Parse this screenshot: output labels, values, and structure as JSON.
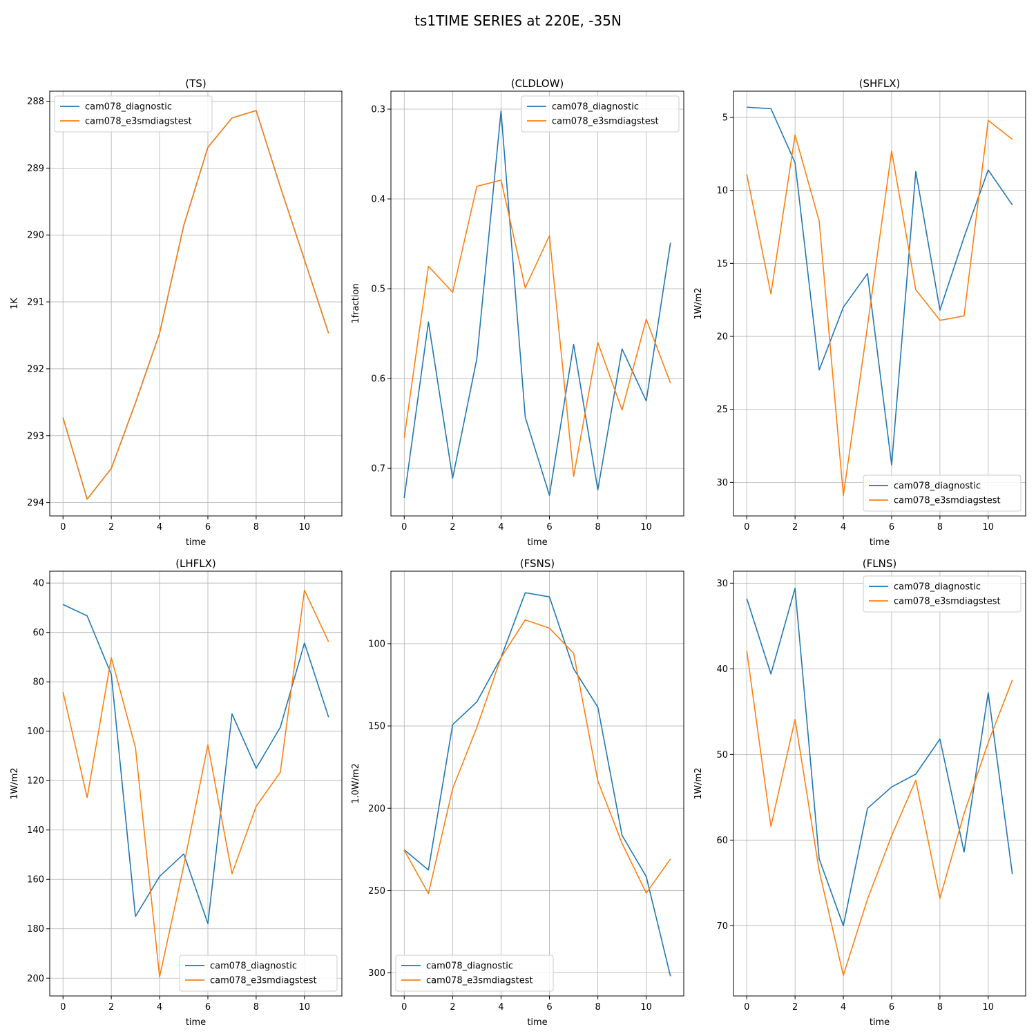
{
  "figure": {
    "suptitle": "ts1TIME SERIES at 220E, -35N"
  },
  "colors": {
    "diagnostic": "#1f77b4",
    "e3smdiagstest": "#ff7f0e"
  },
  "chart_data": [
    {
      "type": "line",
      "title": "(TS)",
      "xlabel": "time",
      "ylabel": "1K",
      "x": [
        0,
        1,
        2,
        3,
        4,
        5,
        6,
        7,
        8,
        9,
        10,
        11
      ],
      "xticks": [
        0,
        2,
        4,
        6,
        8,
        10
      ],
      "xlim": [
        -0.55,
        11.55
      ],
      "yticks": [
        288,
        289,
        290,
        291,
        292,
        293,
        294
      ],
      "ytick_labels": [
        "288",
        "289",
        "290",
        "291",
        "292",
        "293",
        "294"
      ],
      "ylim": [
        287.85,
        294.2
      ],
      "y_inverted": true,
      "grid": true,
      "legend": "upper-left",
      "series": [
        {
          "name": "cam078_diagnostic",
          "color": "#1f77b4",
          "values": [
            292.73,
            293.95,
            293.49,
            292.51,
            291.47,
            289.86,
            288.69,
            288.25,
            288.14,
            289.28,
            290.37,
            291.47
          ]
        },
        {
          "name": "cam078_e3smdiagstest",
          "color": "#ff7f0e",
          "values": [
            292.73,
            293.95,
            293.49,
            292.51,
            291.47,
            289.86,
            288.69,
            288.25,
            288.14,
            289.28,
            290.37,
            291.47
          ]
        }
      ]
    },
    {
      "type": "line",
      "title": "(CLDLOW)",
      "xlabel": "time",
      "ylabel": "1fraction",
      "x": [
        0,
        1,
        2,
        3,
        4,
        5,
        6,
        7,
        8,
        9,
        10,
        11
      ],
      "xticks": [
        0,
        2,
        4,
        6,
        8,
        10
      ],
      "xlim": [
        -0.55,
        11.55
      ],
      "yticks": [
        0.3,
        0.4,
        0.5,
        0.6,
        0.7
      ],
      "ytick_labels": [
        "0.3",
        "0.4",
        "0.5",
        "0.6",
        "0.7"
      ],
      "ylim": [
        0.28,
        0.753
      ],
      "y_inverted": true,
      "grid": true,
      "legend": "upper-right",
      "series": [
        {
          "name": "cam078_diagnostic",
          "color": "#1f77b4",
          "values": [
            0.733,
            0.537,
            0.711,
            0.578,
            0.302,
            0.643,
            0.73,
            0.562,
            0.724,
            0.567,
            0.625,
            0.449
          ]
        },
        {
          "name": "cam078_e3smdiagstest",
          "color": "#ff7f0e",
          "values": [
            0.666,
            0.475,
            0.504,
            0.386,
            0.379,
            0.499,
            0.441,
            0.709,
            0.56,
            0.635,
            0.534,
            0.605
          ]
        }
      ]
    },
    {
      "type": "line",
      "title": "(SHFLX)",
      "xlabel": "time",
      "ylabel": "1W/m2",
      "x": [
        0,
        1,
        2,
        3,
        4,
        5,
        6,
        7,
        8,
        9,
        10,
        11
      ],
      "xticks": [
        0,
        2,
        4,
        6,
        8,
        10
      ],
      "xlim": [
        -0.55,
        11.55
      ],
      "yticks": [
        5,
        10,
        15,
        20,
        25,
        30
      ],
      "ytick_labels": [
        "5",
        "10",
        "15",
        "20",
        "25",
        "30"
      ],
      "ylim": [
        3.2,
        32.3
      ],
      "y_inverted": true,
      "grid": true,
      "legend": "lower-right",
      "series": [
        {
          "name": "cam078_diagnostic",
          "color": "#1f77b4",
          "values": [
            4.3,
            4.4,
            8.1,
            22.3,
            18.0,
            15.7,
            28.8,
            8.7,
            18.2,
            13.2,
            8.6,
            11.0
          ]
        },
        {
          "name": "cam078_e3smdiagstest",
          "color": "#ff7f0e",
          "values": [
            8.9,
            17.1,
            6.2,
            12.1,
            30.9,
            19.3,
            7.3,
            16.8,
            18.9,
            18.6,
            5.2,
            6.5
          ]
        }
      ]
    },
    {
      "type": "line",
      "title": "(LHFLX)",
      "xlabel": "time",
      "ylabel": "1W/m2",
      "x": [
        0,
        1,
        2,
        3,
        4,
        5,
        6,
        7,
        8,
        9,
        10,
        11
      ],
      "xticks": [
        0,
        2,
        4,
        6,
        8,
        10
      ],
      "xlim": [
        -0.55,
        11.55
      ],
      "yticks": [
        40,
        60,
        80,
        100,
        120,
        140,
        160,
        180,
        200
      ],
      "ytick_labels": [
        "40",
        "60",
        "80",
        "100",
        "120",
        "140",
        "160",
        "180",
        "200"
      ],
      "ylim": [
        35.2,
        207.2
      ],
      "y_inverted": true,
      "grid": true,
      "legend": "lower-right",
      "series": [
        {
          "name": "cam078_diagnostic",
          "color": "#1f77b4",
          "values": [
            48.7,
            53.3,
            77.0,
            175.0,
            158.8,
            149.7,
            177.9,
            93.0,
            115.0,
            98.4,
            64.3,
            94.3
          ]
        },
        {
          "name": "cam078_e3smdiagstest",
          "color": "#ff7f0e",
          "values": [
            84.1,
            126.9,
            70.2,
            106.6,
            199.5,
            154.5,
            105.5,
            157.7,
            130.4,
            116.6,
            42.9,
            63.8
          ]
        }
      ]
    },
    {
      "type": "line",
      "title": "(FSNS)",
      "xlabel": "time",
      "ylabel": "1.0W/m2",
      "x": [
        0,
        1,
        2,
        3,
        4,
        5,
        6,
        7,
        8,
        9,
        10,
        11
      ],
      "xticks": [
        0,
        2,
        4,
        6,
        8,
        10
      ],
      "xlim": [
        -0.55,
        11.55
      ],
      "yticks": [
        100,
        150,
        200,
        250,
        300
      ],
      "ytick_labels": [
        "100",
        "150",
        "200",
        "250",
        "300"
      ],
      "ylim": [
        56,
        314
      ],
      "y_inverted": true,
      "grid": true,
      "legend": "lower-left",
      "series": [
        {
          "name": "cam078_diagnostic",
          "color": "#1f77b4",
          "values": [
            225.2,
            237.5,
            149.2,
            135.4,
            108.5,
            69.1,
            71.6,
            115.3,
            138.6,
            216.4,
            241.5,
            302.0
          ]
        },
        {
          "name": "cam078_e3smdiagstest",
          "color": "#ff7f0e",
          "values": [
            225.5,
            251.8,
            188.1,
            150.9,
            108.5,
            85.6,
            90.6,
            105.9,
            183.4,
            221.3,
            251.5,
            230.8
          ]
        }
      ]
    },
    {
      "type": "line",
      "title": "(FLNS)",
      "xlabel": "time",
      "ylabel": "1W/m2",
      "x": [
        0,
        1,
        2,
        3,
        4,
        5,
        6,
        7,
        8,
        9,
        10,
        11
      ],
      "xticks": [
        0,
        2,
        4,
        6,
        8,
        10
      ],
      "xlim": [
        -0.55,
        11.55
      ],
      "yticks": [
        30,
        40,
        50,
        60,
        70
      ],
      "ytick_labels": [
        "30",
        "40",
        "50",
        "60",
        "70"
      ],
      "ylim": [
        28.6,
        78.2
      ],
      "y_inverted": true,
      "grid": true,
      "legend": "upper-right",
      "series": [
        {
          "name": "cam078_diagnostic",
          "color": "#1f77b4",
          "values": [
            31.8,
            40.6,
            30.6,
            62.2,
            70.0,
            56.3,
            53.8,
            52.3,
            48.2,
            61.4,
            42.8,
            64.0
          ]
        },
        {
          "name": "cam078_e3smdiagstest",
          "color": "#ff7f0e",
          "values": [
            37.9,
            58.4,
            45.9,
            63.6,
            75.8,
            66.9,
            59.5,
            53.0,
            66.8,
            56.9,
            48.6,
            41.3
          ]
        }
      ]
    }
  ]
}
